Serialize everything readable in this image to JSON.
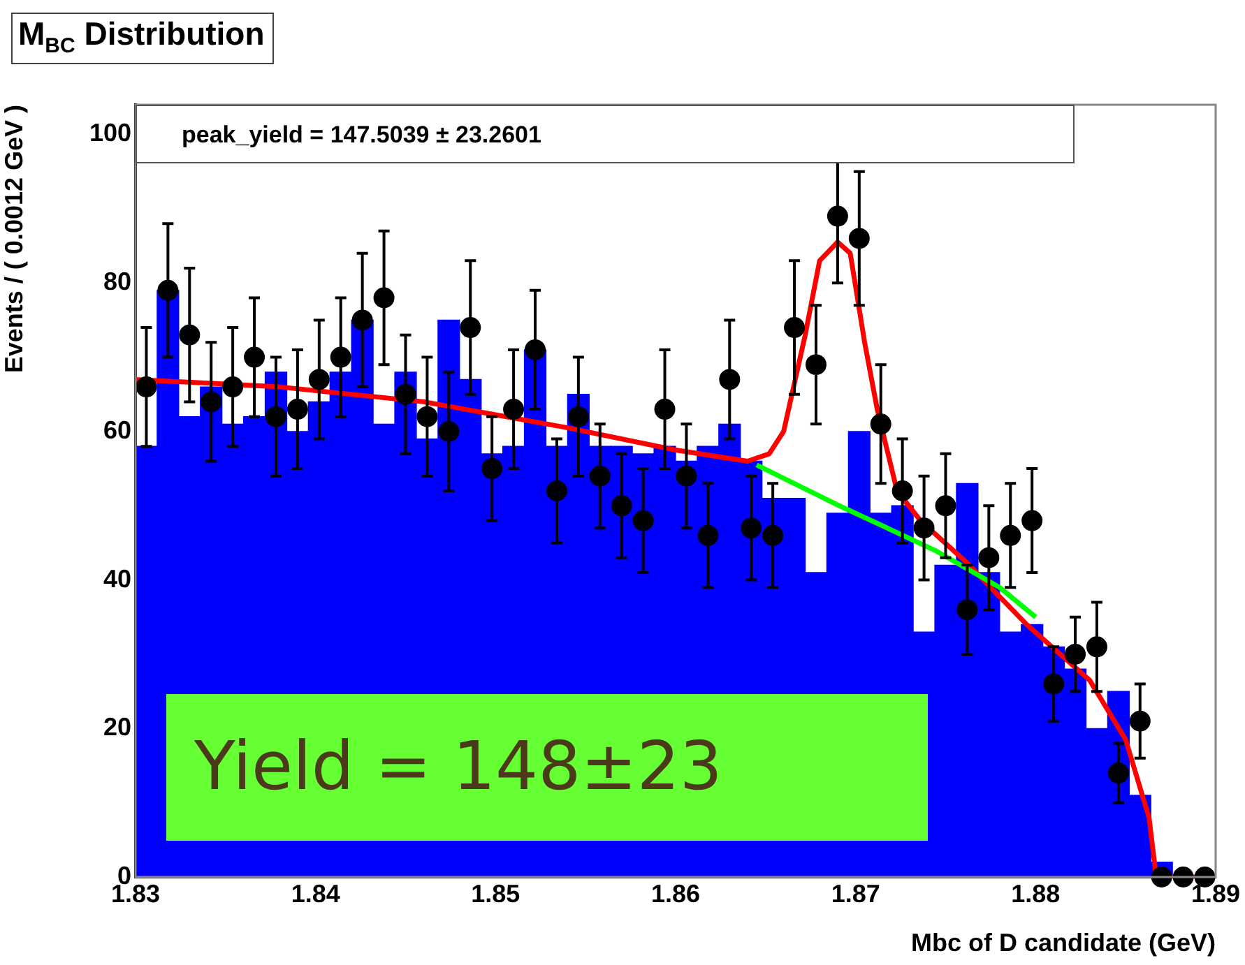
{
  "chart_data": {
    "type": "histogram",
    "title": "M$_{BC}$ Distribution",
    "xlabel": "Mbc of D candidate (GeV)",
    "ylabel": "Events / ( 0.0012 GeV )",
    "xlim": [
      1.83,
      1.89
    ],
    "xticks": [
      1.83,
      1.84,
      1.85,
      1.86,
      1.87,
      1.88,
      1.89
    ],
    "ylim": [
      0,
      104
    ],
    "yticks": [
      0,
      20,
      40,
      60,
      80,
      100
    ],
    "grid": false,
    "legend": false,
    "bins": [
      1.83,
      1.8312,
      1.8324,
      1.8336,
      1.8348,
      1.836,
      1.8372,
      1.8384,
      1.8396,
      1.8408,
      1.842,
      1.8432,
      1.8444,
      1.8456,
      1.8468,
      1.848,
      1.8492,
      1.8504,
      1.8516,
      1.8528,
      1.854,
      1.8552,
      1.8564,
      1.8576,
      1.8588,
      1.86,
      1.8612,
      1.8624,
      1.8636,
      1.8648,
      1.866,
      1.8672,
      1.8684,
      1.8696,
      1.8708,
      1.872,
      1.8732,
      1.8744,
      1.8756,
      1.8768,
      1.878,
      1.8792,
      1.8804,
      1.8816,
      1.8828,
      1.884,
      1.8852,
      1.8864,
      1.8876,
      1.8888,
      1.89
    ],
    "series": [
      {
        "color": "#0000ff",
        "values": [
          58,
          79,
          62,
          66,
          61,
          62,
          68,
          60,
          64,
          68,
          75,
          61,
          68,
          59,
          75,
          67,
          57,
          58,
          71,
          58,
          65,
          58,
          58,
          57,
          58,
          56,
          58,
          61,
          56,
          51,
          51,
          41,
          49,
          60,
          49,
          50,
          33,
          42,
          53,
          41,
          33,
          34,
          31,
          28,
          20,
          25,
          11,
          2,
          0,
          0
        ]
      },
      {
        "type": "scatter",
        "color": "#000000",
        "marker": "circle",
        "x": [
          1.8306,
          1.8318,
          1.833,
          1.8342,
          1.8354,
          1.8366,
          1.8378,
          1.839,
          1.8402,
          1.8414,
          1.8426,
          1.8438,
          1.845,
          1.8462,
          1.8474,
          1.8486,
          1.8498,
          1.851,
          1.8522,
          1.8534,
          1.8546,
          1.8558,
          1.857,
          1.8582,
          1.8594,
          1.8606,
          1.8618,
          1.863,
          1.8642,
          1.8654,
          1.8666,
          1.8678,
          1.869,
          1.8702,
          1.8714,
          1.8726,
          1.8738,
          1.875,
          1.8762,
          1.8774,
          1.8786,
          1.8798,
          1.881,
          1.8822,
          1.8834,
          1.8846,
          1.8858,
          1.887,
          1.8882,
          1.8894
        ],
        "values": [
          66,
          79,
          73,
          64,
          66,
          70,
          62,
          63,
          67,
          70,
          75,
          78,
          65,
          62,
          60,
          74,
          55,
          63,
          71,
          52,
          62,
          54,
          50,
          48,
          63,
          54,
          46,
          67,
          47,
          46,
          74,
          69,
          89,
          86,
          61,
          52,
          47,
          50,
          36,
          43,
          46,
          48,
          26,
          30,
          31,
          14,
          21,
          0,
          0,
          0
        ],
        "errors": [
          8,
          9,
          9,
          8,
          8,
          8,
          8,
          8,
          8,
          8,
          9,
          9,
          8,
          8,
          8,
          9,
          7,
          8,
          8,
          7,
          8,
          7,
          7,
          7,
          8,
          7,
          7,
          8,
          7,
          7,
          9,
          8,
          9,
          9,
          8,
          7,
          7,
          7,
          6,
          7,
          7,
          7,
          5,
          5,
          6,
          4,
          5,
          null,
          null,
          null
        ]
      },
      {
        "type": "line",
        "color": "#00ff00",
        "x": [
          1.8645,
          1.8691,
          1.8744,
          1.878,
          1.88
        ],
        "values": [
          55.5,
          50,
          44,
          39,
          35
        ]
      },
      {
        "type": "line",
        "color": "#ff0000",
        "x": [
          1.83,
          1.838,
          1.846,
          1.854,
          1.86,
          1.864,
          1.8652,
          1.866,
          1.8672,
          1.868,
          1.869,
          1.8697,
          1.8705,
          1.8712,
          1.8723,
          1.8736,
          1.8761,
          1.8795,
          1.883,
          1.885,
          1.8863,
          1.8867,
          1.89
        ],
        "values": [
          67,
          66,
          64,
          60.5,
          57.5,
          56,
          57,
          60,
          73,
          83,
          85.5,
          84,
          72,
          63,
          52,
          48,
          42.5,
          34,
          26.5,
          18.5,
          8,
          0,
          0
        ]
      }
    ],
    "annotations": [
      "peak_yield =  147.5039 ± 23.2601",
      "Yield = 148±23"
    ]
  }
}
